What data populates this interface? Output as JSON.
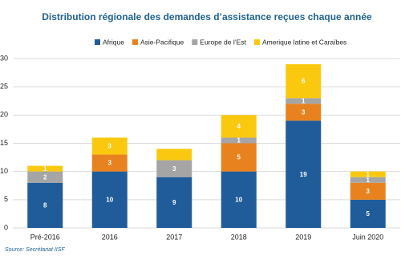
{
  "chart_data": {
    "type": "stacked_bar",
    "title": "Distribution régionale des demandes d’assistance reçues chaque année",
    "source": "Source: Secrétariat IISF",
    "categories": [
      "Pré-2016",
      "2016",
      "2017",
      "2018",
      "2019",
      "Juin 2020"
    ],
    "series": [
      {
        "name": "Afrique",
        "color": "#1f5c99",
        "values": [
          8,
          10,
          9,
          10,
          19,
          5
        ]
      },
      {
        "name": "Asie-Pacifique",
        "color": "#e8821e",
        "values": [
          0,
          3,
          0,
          5,
          3,
          3
        ]
      },
      {
        "name": "Europe de l’Est",
        "color": "#a5a5a5",
        "values": [
          2,
          0,
          3,
          1,
          1,
          1
        ]
      },
      {
        "name": "Amerique latine et Caraïbes",
        "color": "#fac90f",
        "values": [
          1,
          3,
          2,
          4,
          6,
          1
        ],
        "value_labels": [
          "1",
          "3",
          null,
          "4",
          "6",
          "1"
        ]
      }
    ],
    "ylim": [
      0,
      30
    ],
    "yticks": [
      0,
      5,
      10,
      15,
      20,
      25,
      30
    ],
    "grid": true
  }
}
